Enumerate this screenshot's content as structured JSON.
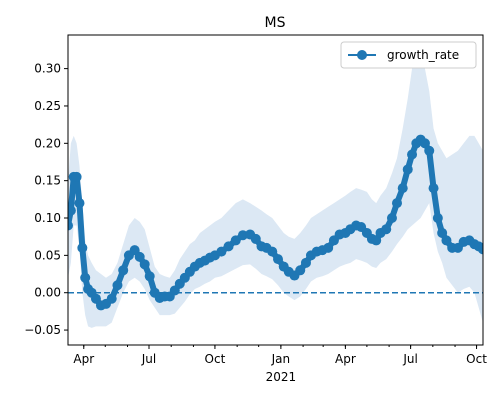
{
  "chart_data": {
    "type": "line",
    "title": "MS",
    "xlabel": "",
    "ylabel": "",
    "x_unit": "date",
    "xlim": [
      "2020-03-10",
      "2021-10-10"
    ],
    "ylim": [
      -0.07,
      0.345
    ],
    "grid": false,
    "legend": {
      "placement": "top-right",
      "entries": [
        "growth_rate"
      ]
    },
    "colors": {
      "series": "#1f77b4",
      "band": "#dce8f4",
      "zero_line": "#1f77b4"
    },
    "x_ticks": [
      {
        "date": "2020-04-01",
        "label": "Apr"
      },
      {
        "date": "2020-07-01",
        "label": "Jul"
      },
      {
        "date": "2020-10-01",
        "label": "Oct"
      },
      {
        "date": "2021-01-01",
        "label": "Jan"
      },
      {
        "date": "2021-04-01",
        "label": "Apr"
      },
      {
        "date": "2021-07-01",
        "label": "Jul"
      },
      {
        "date": "2021-10-01",
        "label": "Oct"
      }
    ],
    "x_year_label": {
      "date": "2021-01-01",
      "label": "2021"
    },
    "y_ticks": [
      -0.05,
      0.0,
      0.05,
      0.1,
      0.15,
      0.2,
      0.25,
      0.3
    ],
    "y_tick_labels": [
      "−0.05",
      "0.00",
      "0.05",
      "0.10",
      "0.15",
      "0.20",
      "0.25",
      "0.30"
    ],
    "reference_line": {
      "y": 0.0,
      "style": "dashed"
    },
    "series": [
      {
        "name": "growth_rate",
        "marker": "circle",
        "x": [
          "2020-03-10",
          "2020-03-14",
          "2020-03-18",
          "2020-03-22",
          "2020-03-26",
          "2020-03-30",
          "2020-04-03",
          "2020-04-07",
          "2020-04-12",
          "2020-04-18",
          "2020-04-25",
          "2020-05-02",
          "2020-05-10",
          "2020-05-18",
          "2020-05-26",
          "2020-06-03",
          "2020-06-11",
          "2020-06-18",
          "2020-06-25",
          "2020-07-02",
          "2020-07-09",
          "2020-07-16",
          "2020-07-23",
          "2020-07-30",
          "2020-08-06",
          "2020-08-13",
          "2020-08-20",
          "2020-08-27",
          "2020-09-03",
          "2020-09-10",
          "2020-09-17",
          "2020-09-24",
          "2020-10-01",
          "2020-10-10",
          "2020-10-20",
          "2020-10-30",
          "2020-11-09",
          "2020-11-19",
          "2020-11-27",
          "2020-12-05",
          "2020-12-12",
          "2020-12-20",
          "2020-12-28",
          "2021-01-05",
          "2021-01-12",
          "2021-01-20",
          "2021-01-28",
          "2021-02-05",
          "2021-02-12",
          "2021-02-20",
          "2021-02-28",
          "2021-03-08",
          "2021-03-16",
          "2021-03-24",
          "2021-04-01",
          "2021-04-08",
          "2021-04-16",
          "2021-04-23",
          "2021-05-01",
          "2021-05-08",
          "2021-05-14",
          "2021-05-20",
          "2021-05-28",
          "2021-06-05",
          "2021-06-12",
          "2021-06-20",
          "2021-06-27",
          "2021-07-03",
          "2021-07-09",
          "2021-07-15",
          "2021-07-21",
          "2021-07-27",
          "2021-08-02",
          "2021-08-08",
          "2021-08-14",
          "2021-08-20",
          "2021-08-28",
          "2021-09-05",
          "2021-09-13",
          "2021-09-21",
          "2021-09-28",
          "2021-10-04",
          "2021-10-10"
        ],
        "y": [
          0.09,
          0.11,
          0.155,
          0.155,
          0.12,
          0.06,
          0.02,
          0.005,
          0.0,
          -0.008,
          -0.017,
          -0.015,
          -0.008,
          0.01,
          0.03,
          0.05,
          0.057,
          0.048,
          0.038,
          0.022,
          0.0,
          -0.007,
          -0.005,
          -0.005,
          0.003,
          0.012,
          0.02,
          0.028,
          0.035,
          0.04,
          0.043,
          0.047,
          0.05,
          0.055,
          0.062,
          0.07,
          0.077,
          0.078,
          0.072,
          0.062,
          0.06,
          0.055,
          0.045,
          0.035,
          0.028,
          0.023,
          0.03,
          0.04,
          0.05,
          0.055,
          0.057,
          0.06,
          0.07,
          0.078,
          0.08,
          0.085,
          0.09,
          0.088,
          0.08,
          0.072,
          0.07,
          0.08,
          0.085,
          0.1,
          0.12,
          0.14,
          0.165,
          0.185,
          0.2,
          0.205,
          0.2,
          0.19,
          0.14,
          0.1,
          0.08,
          0.07,
          0.06,
          0.06,
          0.068,
          0.07,
          0.065,
          0.062,
          0.058
        ]
      }
    ],
    "band": {
      "lower": [
        0.02,
        0.04,
        0.09,
        0.09,
        0.06,
        0.0,
        -0.03,
        -0.045,
        -0.047,
        -0.045,
        -0.045,
        -0.045,
        -0.04,
        -0.02,
        0.0,
        0.015,
        0.02,
        0.015,
        0.005,
        -0.01,
        -0.02,
        -0.03,
        -0.03,
        -0.03,
        -0.028,
        -0.02,
        -0.012,
        -0.002,
        0.005,
        0.008,
        0.012,
        0.015,
        0.02,
        0.022,
        0.027,
        0.032,
        0.037,
        0.038,
        0.032,
        0.025,
        0.022,
        0.018,
        0.01,
        0.0,
        -0.005,
        -0.01,
        -0.005,
        0.005,
        0.015,
        0.02,
        0.022,
        0.025,
        0.03,
        0.035,
        0.038,
        0.04,
        0.045,
        0.043,
        0.04,
        0.035,
        0.033,
        0.04,
        0.045,
        0.055,
        0.065,
        0.075,
        0.085,
        0.09,
        0.095,
        0.1,
        0.11,
        0.12,
        0.08,
        0.055,
        0.04,
        0.02,
        0.01,
        0.0,
        0.005,
        0.008,
        0.0,
        -0.02,
        -0.04
      ],
      "upper": [
        0.15,
        0.2,
        0.21,
        0.2,
        0.17,
        0.12,
        0.07,
        0.05,
        0.04,
        0.03,
        0.025,
        0.02,
        0.025,
        0.04,
        0.065,
        0.09,
        0.1,
        0.095,
        0.085,
        0.06,
        0.035,
        0.025,
        0.022,
        0.02,
        0.03,
        0.045,
        0.055,
        0.065,
        0.07,
        0.08,
        0.085,
        0.09,
        0.095,
        0.1,
        0.11,
        0.12,
        0.125,
        0.12,
        0.115,
        0.11,
        0.105,
        0.1,
        0.09,
        0.08,
        0.075,
        0.072,
        0.08,
        0.09,
        0.1,
        0.105,
        0.11,
        0.115,
        0.12,
        0.125,
        0.13,
        0.135,
        0.14,
        0.138,
        0.135,
        0.125,
        0.12,
        0.13,
        0.14,
        0.16,
        0.18,
        0.22,
        0.26,
        0.3,
        0.32,
        0.32,
        0.3,
        0.27,
        0.22,
        0.2,
        0.19,
        0.18,
        0.185,
        0.19,
        0.2,
        0.21,
        0.21,
        0.2,
        0.19
      ]
    }
  }
}
